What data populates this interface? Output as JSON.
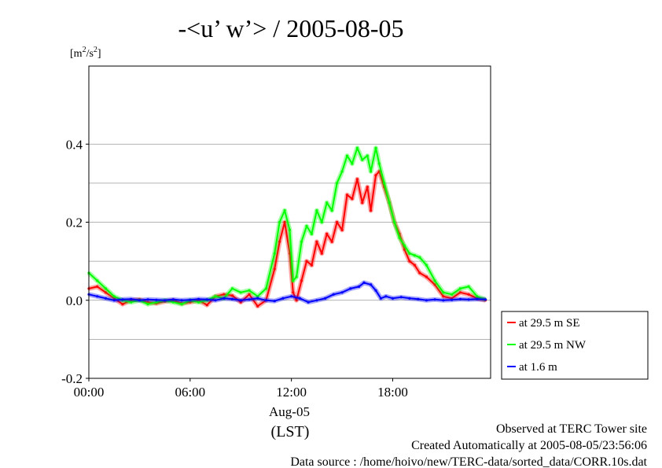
{
  "chart_data": {
    "type": "line",
    "title": "-<u’ w’> / 2005-08-05",
    "ylabel_unit_prefix": "[m",
    "ylabel_unit_sup1": "2",
    "ylabel_unit_mid": "/s",
    "ylabel_unit_sup2": "2",
    "ylabel_unit_suffix": "]",
    "ylim": [
      -0.2,
      0.6
    ],
    "xlim_hours": [
      0,
      23.8
    ],
    "y_ticks": [
      {
        "value": 0.4,
        "label": "0.4"
      },
      {
        "value": 0.2,
        "label": "0.2"
      },
      {
        "value": 0.0,
        "label": "0.0"
      },
      {
        "value": -0.2,
        "label": "-0.2"
      }
    ],
    "y_minor_ticks": [
      0.6,
      0.3,
      0.1,
      -0.1
    ],
    "x_ticks": [
      {
        "hour": 0,
        "label": "00:00"
      },
      {
        "hour": 6,
        "label": "06:00"
      },
      {
        "hour": 12,
        "label": "12:00"
      },
      {
        "hour": 18,
        "label": "18:00"
      }
    ],
    "x_date_label": "Aug-05",
    "x_axis_label": "(LST)",
    "grid": true,
    "legend_position": "right",
    "series": [
      {
        "name": "at 29.5 m SE",
        "color": "#ff0000",
        "points": [
          [
            0,
            0.03
          ],
          [
            0.5,
            0.035
          ],
          [
            1,
            0.02
          ],
          [
            1.5,
            0.005
          ],
          [
            2,
            -0.01
          ],
          [
            2.5,
            0.0
          ],
          [
            3,
            0.002
          ],
          [
            3.5,
            -0.005
          ],
          [
            4,
            -0.008
          ],
          [
            4.5,
            -0.003
          ],
          [
            5,
            0.0
          ],
          [
            5.5,
            -0.008
          ],
          [
            6,
            -0.005
          ],
          [
            6.5,
            0.0
          ],
          [
            7,
            -0.012
          ],
          [
            7.5,
            0.01
          ],
          [
            8,
            0.015
          ],
          [
            8.5,
            0.012
          ],
          [
            9,
            -0.005
          ],
          [
            9.5,
            0.015
          ],
          [
            10,
            -0.015
          ],
          [
            10.5,
            0.0
          ],
          [
            11,
            0.08
          ],
          [
            11.3,
            0.15
          ],
          [
            11.6,
            0.2
          ],
          [
            11.9,
            0.12
          ],
          [
            12.1,
            0.02
          ],
          [
            12.3,
            0.0
          ],
          [
            12.6,
            0.05
          ],
          [
            12.9,
            0.1
          ],
          [
            13.2,
            0.09
          ],
          [
            13.5,
            0.15
          ],
          [
            13.8,
            0.12
          ],
          [
            14.1,
            0.17
          ],
          [
            14.4,
            0.15
          ],
          [
            14.7,
            0.2
          ],
          [
            15,
            0.18
          ],
          [
            15.3,
            0.27
          ],
          [
            15.6,
            0.26
          ],
          [
            15.9,
            0.31
          ],
          [
            16.2,
            0.25
          ],
          [
            16.5,
            0.29
          ],
          [
            16.7,
            0.23
          ],
          [
            17,
            0.32
          ],
          [
            17.2,
            0.33
          ],
          [
            17.5,
            0.29
          ],
          [
            17.8,
            0.25
          ],
          [
            18.1,
            0.2
          ],
          [
            18.4,
            0.17
          ],
          [
            18.7,
            0.13
          ],
          [
            19,
            0.1
          ],
          [
            19.3,
            0.09
          ],
          [
            19.6,
            0.07
          ],
          [
            20,
            0.06
          ],
          [
            20.5,
            0.04
          ],
          [
            21,
            0.01
          ],
          [
            21.5,
            0.005
          ],
          [
            22,
            0.02
          ],
          [
            22.5,
            0.015
          ],
          [
            23,
            0.005
          ],
          [
            23.5,
            0.0
          ]
        ]
      },
      {
        "name": "at 29.5 m NW",
        "color": "#00ff00",
        "points": [
          [
            0,
            0.07
          ],
          [
            0.5,
            0.05
          ],
          [
            1,
            0.03
          ],
          [
            1.5,
            0.01
          ],
          [
            2,
            0.0
          ],
          [
            2.5,
            -0.005
          ],
          [
            3,
            0.0
          ],
          [
            3.5,
            -0.01
          ],
          [
            4,
            -0.005
          ],
          [
            4.5,
            0.0
          ],
          [
            5,
            -0.005
          ],
          [
            5.5,
            -0.01
          ],
          [
            6,
            0.0
          ],
          [
            6.5,
            -0.005
          ],
          [
            7,
            0.0
          ],
          [
            7.5,
            0.01
          ],
          [
            8,
            0.005
          ],
          [
            8.5,
            0.03
          ],
          [
            9,
            0.02
          ],
          [
            9.5,
            0.025
          ],
          [
            10,
            0.01
          ],
          [
            10.5,
            0.03
          ],
          [
            11,
            0.12
          ],
          [
            11.3,
            0.2
          ],
          [
            11.6,
            0.23
          ],
          [
            11.9,
            0.18
          ],
          [
            12.1,
            0.05
          ],
          [
            12.3,
            0.06
          ],
          [
            12.6,
            0.15
          ],
          [
            12.9,
            0.19
          ],
          [
            13.2,
            0.17
          ],
          [
            13.5,
            0.23
          ],
          [
            13.8,
            0.2
          ],
          [
            14.1,
            0.25
          ],
          [
            14.4,
            0.23
          ],
          [
            14.7,
            0.3
          ],
          [
            15,
            0.33
          ],
          [
            15.3,
            0.37
          ],
          [
            15.6,
            0.35
          ],
          [
            15.9,
            0.39
          ],
          [
            16.2,
            0.36
          ],
          [
            16.5,
            0.37
          ],
          [
            16.7,
            0.33
          ],
          [
            17,
            0.39
          ],
          [
            17.2,
            0.35
          ],
          [
            17.5,
            0.3
          ],
          [
            17.8,
            0.25
          ],
          [
            18.1,
            0.2
          ],
          [
            18.4,
            0.16
          ],
          [
            18.7,
            0.14
          ],
          [
            19,
            0.12
          ],
          [
            19.3,
            0.115
          ],
          [
            19.6,
            0.11
          ],
          [
            20,
            0.09
          ],
          [
            20.5,
            0.05
          ],
          [
            21,
            0.02
          ],
          [
            21.5,
            0.015
          ],
          [
            22,
            0.03
          ],
          [
            22.5,
            0.035
          ],
          [
            23,
            0.01
          ],
          [
            23.5,
            0.002
          ]
        ]
      },
      {
        "name": "at 1.6 m",
        "color": "#0000ff",
        "points": [
          [
            0,
            0.015
          ],
          [
            0.5,
            0.01
          ],
          [
            1,
            0.005
          ],
          [
            1.5,
            0.0
          ],
          [
            2,
            0.002
          ],
          [
            2.5,
            0.003
          ],
          [
            3,
            0.0
          ],
          [
            3.5,
            0.002
          ],
          [
            4,
            0.001
          ],
          [
            4.5,
            0.0
          ],
          [
            5,
            0.002
          ],
          [
            5.5,
            0.0
          ],
          [
            6,
            0.001
          ],
          [
            6.5,
            0.003
          ],
          [
            7,
            0.002
          ],
          [
            7.5,
            0.0
          ],
          [
            8,
            0.005
          ],
          [
            8.5,
            0.003
          ],
          [
            9,
            0.0
          ],
          [
            9.5,
            0.002
          ],
          [
            10,
            0.005
          ],
          [
            10.5,
            0.0
          ],
          [
            11,
            -0.002
          ],
          [
            11.5,
            0.005
          ],
          [
            12,
            0.01
          ],
          [
            12.5,
            0.005
          ],
          [
            13,
            -0.005
          ],
          [
            13.5,
            0.0
          ],
          [
            14,
            0.005
          ],
          [
            14.5,
            0.015
          ],
          [
            15,
            0.02
          ],
          [
            15.5,
            0.03
          ],
          [
            16,
            0.035
          ],
          [
            16.3,
            0.045
          ],
          [
            16.7,
            0.04
          ],
          [
            17,
            0.025
          ],
          [
            17.3,
            0.005
          ],
          [
            17.6,
            0.01
          ],
          [
            18,
            0.005
          ],
          [
            18.5,
            0.008
          ],
          [
            19,
            0.005
          ],
          [
            19.5,
            0.003
          ],
          [
            20,
            0.0
          ],
          [
            20.5,
            0.002
          ],
          [
            21,
            0.0
          ],
          [
            21.5,
            0.001
          ],
          [
            22,
            0.003
          ],
          [
            22.5,
            0.002
          ],
          [
            23,
            0.003
          ],
          [
            23.5,
            0.002
          ]
        ]
      }
    ]
  },
  "footer": {
    "line1": "Observed at TERC Tower site",
    "line2": "Created Automatically at 2005-08-05/23:56:06",
    "line3": "Data source : /home/hoivo/new/TERC-data/sorted_data/CORR.10s.dat"
  }
}
